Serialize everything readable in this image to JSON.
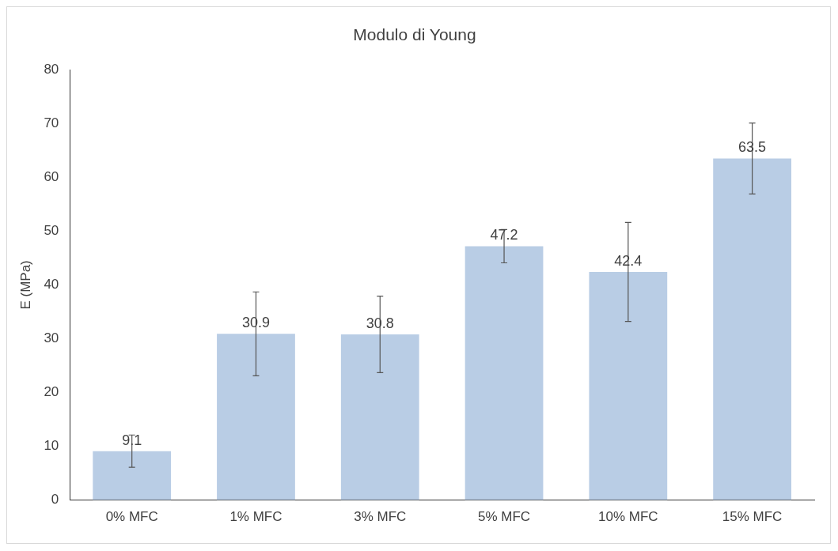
{
  "chart_data": {
    "type": "bar",
    "title": "Modulo di Young",
    "ylabel": "E (MPa)",
    "categories": [
      "0% MFC",
      "1% MFC",
      "3% MFC",
      "5% MFC",
      "10% MFC",
      "15% MFC"
    ],
    "values": [
      9.1,
      30.9,
      30.8,
      47.2,
      42.4,
      63.5
    ],
    "errors": [
      3,
      7.8,
      7.1,
      3.1,
      9.2,
      6.6
    ],
    "color": "#b9cde5",
    "ylim": [
      0,
      80
    ],
    "yticks": [
      0,
      10,
      20,
      30,
      40,
      50,
      60,
      70,
      80
    ],
    "data_labels": true,
    "grid": false,
    "legend": false
  }
}
